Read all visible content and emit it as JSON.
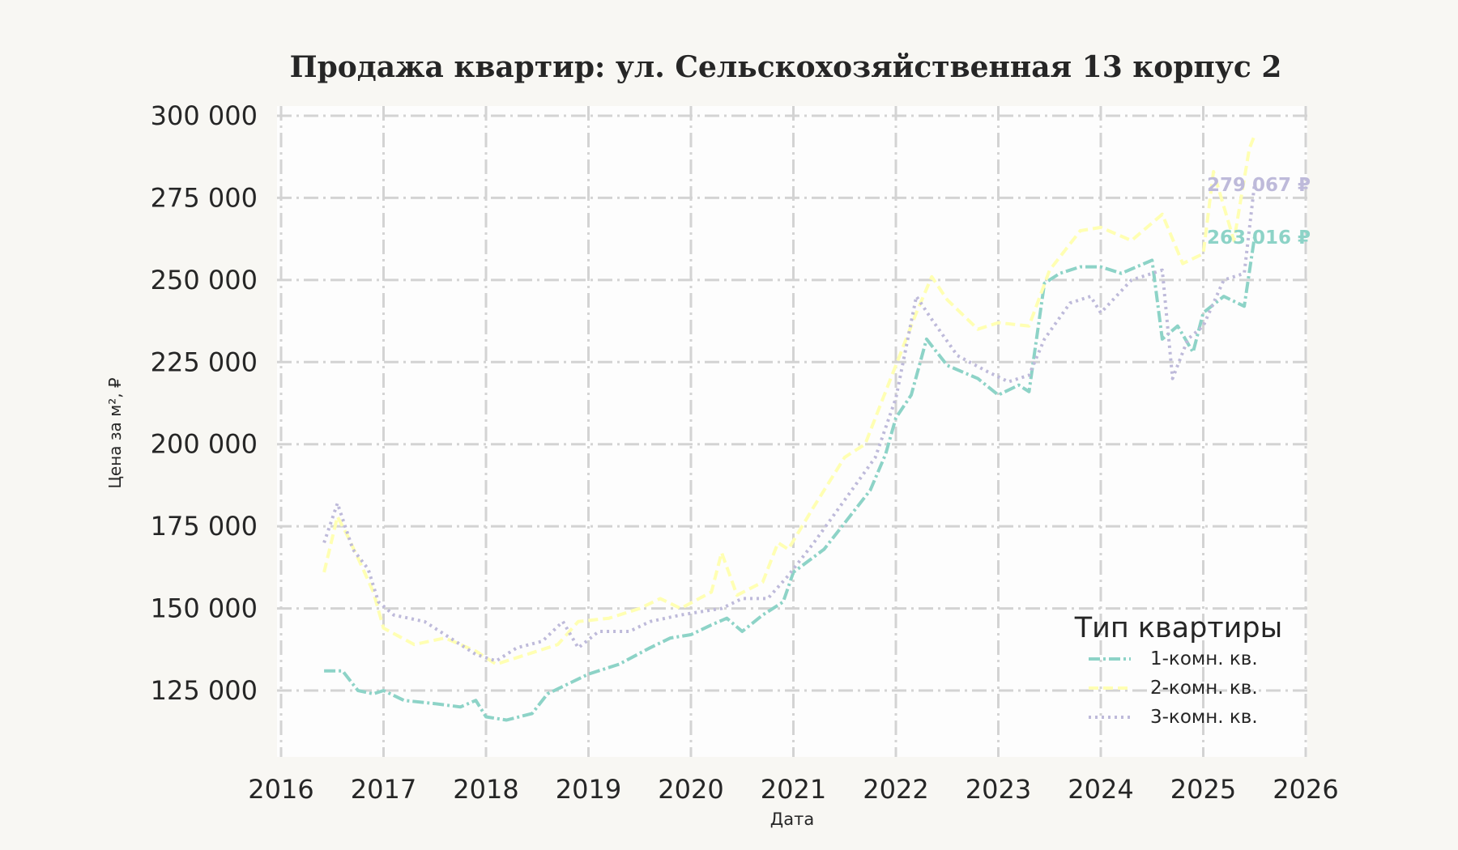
{
  "chart_data": {
    "type": "line",
    "title": "Продажа квартир: ул. Сельскохозяйственная 13 корпус 2",
    "xlabel": "Дата",
    "ylabel": "Цена за м², ₽",
    "xlim": [
      2016,
      2026
    ],
    "ylim": [
      105000,
      303000
    ],
    "x_ticks": [
      "2016",
      "2017",
      "2018",
      "2019",
      "2020",
      "2021",
      "2022",
      "2023",
      "2024",
      "2025",
      "2026"
    ],
    "y_ticks": [
      "125 000",
      "150 000",
      "175 000",
      "200 000",
      "225 000",
      "250 000",
      "275 000",
      "300 000"
    ],
    "y_tick_values": [
      125000,
      150000,
      175000,
      200000,
      225000,
      250000,
      275000,
      300000
    ],
    "grid": true,
    "legend_position": "lower right",
    "legend_title": "Тип квартиры",
    "series": [
      {
        "name": "1-комн. кв.",
        "color": "#8dd3c7",
        "dash": "dashdot",
        "x": [
          2016.42,
          2016.6,
          2016.75,
          2016.9,
          2017.0,
          2017.2,
          2017.5,
          2017.75,
          2017.9,
          2018.0,
          2018.2,
          2018.45,
          2018.6,
          2018.8,
          2019.0,
          2019.3,
          2019.6,
          2019.8,
          2020.0,
          2020.2,
          2020.35,
          2020.5,
          2020.7,
          2020.9,
          2021.0,
          2021.3,
          2021.6,
          2021.75,
          2021.9,
          2022.0,
          2022.15,
          2022.3,
          2022.5,
          2022.8,
          2023.0,
          2023.2,
          2023.3,
          2023.45,
          2023.6,
          2023.8,
          2024.0,
          2024.2,
          2024.5,
          2024.6,
          2024.75,
          2024.9,
          2025.0,
          2025.2,
          2025.4,
          2025.5
        ],
        "values": [
          131000,
          131000,
          125000,
          124000,
          125000,
          122000,
          121000,
          120000,
          122000,
          117000,
          116000,
          118000,
          124000,
          127000,
          130000,
          133000,
          138000,
          141000,
          142000,
          145000,
          147000,
          143000,
          148000,
          152000,
          161000,
          168000,
          180000,
          186000,
          197000,
          208000,
          215000,
          232000,
          224000,
          220000,
          215000,
          218000,
          216000,
          249000,
          252000,
          254000,
          254000,
          252000,
          256000,
          232000,
          236000,
          228000,
          240000,
          245000,
          242000,
          263016
        ]
      },
      {
        "name": "2-комн. кв.",
        "color": "#ffffb3",
        "dash": "dashed",
        "x": [
          2016.42,
          2016.55,
          2016.65,
          2016.8,
          2016.9,
          2017.0,
          2017.3,
          2017.6,
          2017.9,
          2018.1,
          2018.4,
          2018.7,
          2018.9,
          2019.2,
          2019.5,
          2019.7,
          2019.9,
          2020.2,
          2020.3,
          2020.45,
          2020.7,
          2020.85,
          2020.95,
          2021.2,
          2021.5,
          2021.7,
          2021.85,
          2022.0,
          2022.2,
          2022.35,
          2022.5,
          2022.8,
          2023.0,
          2023.3,
          2023.5,
          2023.8,
          2024.0,
          2024.3,
          2024.6,
          2024.8,
          2025.0,
          2025.1,
          2025.3,
          2025.45,
          2025.5
        ],
        "values": [
          161000,
          178000,
          172000,
          162000,
          155000,
          144000,
          139000,
          141000,
          137000,
          133000,
          136000,
          139000,
          146000,
          147000,
          150000,
          153000,
          150000,
          155000,
          167000,
          154000,
          158000,
          170000,
          168000,
          181000,
          196000,
          200000,
          212000,
          224000,
          240000,
          251000,
          244000,
          235000,
          237000,
          236000,
          253000,
          265000,
          266000,
          262000,
          270000,
          255000,
          258000,
          283000,
          262000,
          290000,
          294000
        ]
      },
      {
        "name": "3-комн. кв.",
        "color": "#bebada",
        "dash": "dotted",
        "x": [
          2016.42,
          2016.55,
          2016.7,
          2016.85,
          2016.95,
          2017.1,
          2017.4,
          2017.7,
          2017.9,
          2018.1,
          2018.3,
          2018.55,
          2018.75,
          2018.9,
          2019.1,
          2019.4,
          2019.6,
          2019.9,
          2020.1,
          2020.3,
          2020.5,
          2020.75,
          2020.95,
          2021.2,
          2021.5,
          2021.8,
          2022.0,
          2022.2,
          2022.35,
          2022.6,
          2022.9,
          2023.1,
          2023.3,
          2023.45,
          2023.7,
          2023.9,
          2024.0,
          2024.3,
          2024.6,
          2024.7,
          2024.85,
          2025.0,
          2025.2,
          2025.4,
          2025.5
        ],
        "values": [
          170000,
          182000,
          168000,
          162000,
          152000,
          148000,
          146000,
          140000,
          136000,
          134000,
          138000,
          140000,
          146000,
          138000,
          143000,
          143000,
          146000,
          148000,
          149000,
          150000,
          153000,
          153000,
          160000,
          170000,
          183000,
          196000,
          214000,
          245000,
          238000,
          227000,
          222000,
          219000,
          221000,
          232000,
          243000,
          245000,
          240000,
          250000,
          253000,
          220000,
          232000,
          236000,
          250000,
          252000,
          279067
        ]
      }
    ],
    "annotations": [
      {
        "text": "279 067 ₽",
        "color": "#bebada",
        "x": 2025.5,
        "y": 279067
      },
      {
        "text": "263 016 ₽",
        "color": "#8dd3c7",
        "x": 2025.5,
        "y": 263016
      }
    ]
  },
  "page": {
    "title": "Продажа квартир: ул. Сельскохозяйственная 13 корпус 2",
    "xlabel": "Дата",
    "ylabel": "Цена за м², ₽",
    "legend": {
      "title": "Тип квартиры",
      "items": [
        {
          "label": "1-комн. кв.",
          "color": "#8dd3c7",
          "dash": "14 4 3 4"
        },
        {
          "label": "2-комн. кв.",
          "color": "#ffffb3",
          "dash": "12 6"
        },
        {
          "label": "3-комн. кв.",
          "color": "#bebada",
          "dash": "3 5"
        }
      ]
    }
  }
}
